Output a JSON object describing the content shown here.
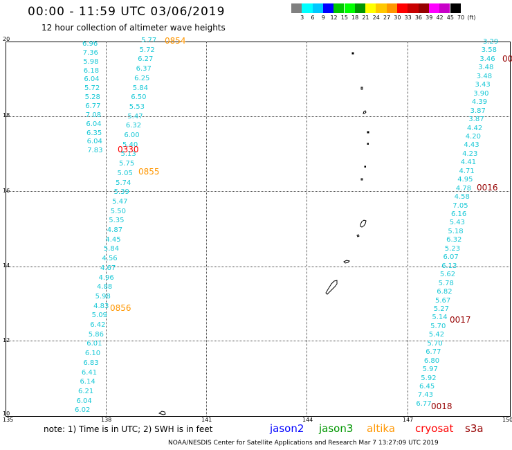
{
  "title": "00:00 - 11:59 UTC 03/06/2019",
  "subtitle": "12 hour collection of altimeter wave heights",
  "legend": {
    "colors": [
      "#808080",
      "#00ffff",
      "#00c8ff",
      "#0000ff",
      "#00c800",
      "#00ff00",
      "#009600",
      "#ffff00",
      "#ffc800",
      "#ff9600",
      "#ff0000",
      "#c80000",
      "#960000",
      "#ff00ff",
      "#c800c8",
      "#000000"
    ],
    "labels": [
      "3",
      "6",
      "9",
      "12",
      "15",
      "18",
      "21",
      "24",
      "27",
      "30",
      "33",
      "36",
      "39",
      "42",
      "45",
      "70",
      "(ft)"
    ]
  },
  "axes": {
    "x_ticks": [
      "135",
      "138",
      "141",
      "144",
      "147",
      "150"
    ],
    "y_ticks": [
      "20",
      "18",
      "16",
      "14",
      "12",
      "10"
    ]
  },
  "wave_color": "#18c8d6",
  "pass_times": {
    "t0854": "0854",
    "t0330": "0330",
    "t0855": "0855",
    "t0856": "0856",
    "t0016": "0016",
    "t0017": "0017",
    "t0018": "0018",
    "t00": "00"
  },
  "track_a": [
    "6.96",
    "7.36",
    "5.98",
    "6.18",
    "6.04",
    "5.72",
    "5.28",
    "6.77",
    "7.08",
    "6.04",
    "6.35",
    "6.04",
    "7.83"
  ],
  "track_b": [
    "5.77",
    "5.72",
    "6.27",
    "6.37",
    "6.25",
    "5.84",
    "6.50",
    "5.53",
    "5.47",
    "6.32",
    "6.00",
    "5.40",
    "5.13",
    "5.75",
    "5.05",
    "5.74",
    "5.39",
    "5.47",
    "5.50",
    "5.35",
    "4.87",
    "4.45",
    "5.84",
    "4.56",
    "4.67",
    "4.96",
    "4.88",
    "5.98",
    "4.83",
    "5.09",
    "6.42",
    "5.86",
    "6.01",
    "6.10",
    "6.83",
    "6.41",
    "6.14",
    "6.21",
    "6.04",
    "6.02"
  ],
  "track_c": [
    "3.29",
    "3.58",
    "3.46",
    "3.48",
    "3.48",
    "3.43",
    "3.90",
    "4.39",
    "3.87",
    "3.87",
    "4.42",
    "4.20",
    "4.43",
    "4.23",
    "4.41",
    "4.71",
    "4.95",
    "4.78",
    "4.58",
    "7.05",
    "6.16",
    "5.43",
    "5.18",
    "6.32",
    "5.23",
    "6.07",
    "6.13",
    "5.62",
    "5.78",
    "6.82",
    "5.67",
    "5.27",
    "5.14",
    "5.70",
    "5.42",
    "5.70",
    "6.77",
    "6.80",
    "5.97",
    "5.92",
    "6.45",
    "7.43",
    "6.77"
  ],
  "note": "note:  1) Time is in UTC;  2) SWH is in feet",
  "satellites": {
    "jason2": "jason2",
    "jason3": "jason3",
    "altika": "altika",
    "cryosat": "cryosat",
    "s3a": "s3a"
  },
  "colors": {
    "jason2": "#0000ff",
    "jason3": "#009600",
    "altika": "#ff9600",
    "cryosat": "#ff0000",
    "s3a": "#960000"
  },
  "footer": "NOAA/NESDIS Center for Satellite Applications and Research     Mar  7 13:27:09 UTC 2019"
}
